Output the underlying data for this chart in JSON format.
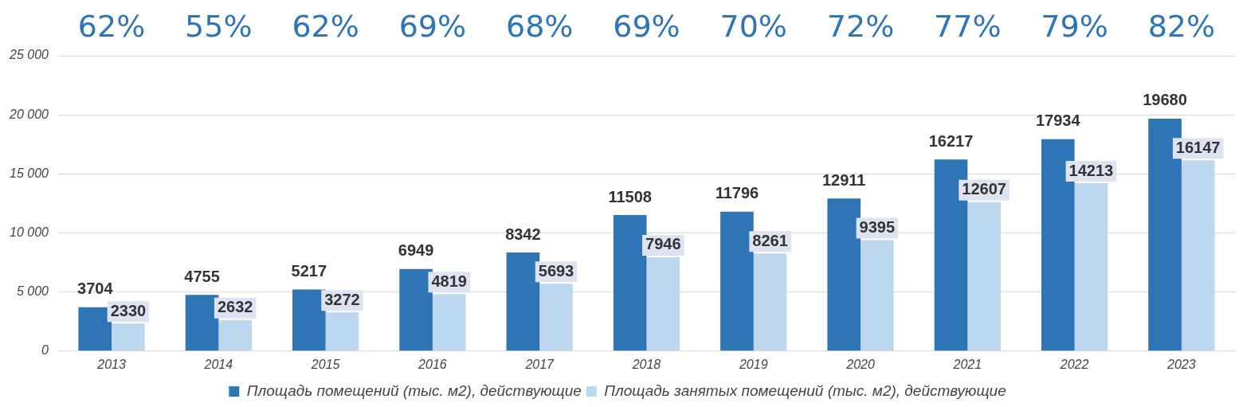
{
  "chart_data": {
    "type": "bar",
    "categories": [
      "2013",
      "2014",
      "2015",
      "2016",
      "2017",
      "2018",
      "2019",
      "2020",
      "2021",
      "2022",
      "2023"
    ],
    "series": [
      {
        "name": "Площадь помещений (тыс. м2), действующие",
        "color": "#2e75b6",
        "values": [
          3704,
          4755,
          5217,
          6949,
          8342,
          11508,
          11796,
          12911,
          16217,
          17934,
          19680
        ]
      },
      {
        "name": "Площадь занятых помещений (тыс. м2), действующие",
        "color": "#bdd7ee",
        "values": [
          2330,
          2632,
          3272,
          4819,
          5693,
          7946,
          8261,
          9395,
          12607,
          14213,
          16147
        ]
      }
    ],
    "ylim": [
      0,
      25000
    ],
    "yticks": [
      0,
      5000,
      10000,
      15000,
      20000,
      25000
    ],
    "grid": "y",
    "legend": "bottom",
    "data_labels": true,
    "annotations": [
      "62%",
      "55%",
      "62%",
      "69%",
      "68%",
      "69%",
      "70%",
      "72%",
      "77%",
      "79%",
      "82%"
    ]
  }
}
